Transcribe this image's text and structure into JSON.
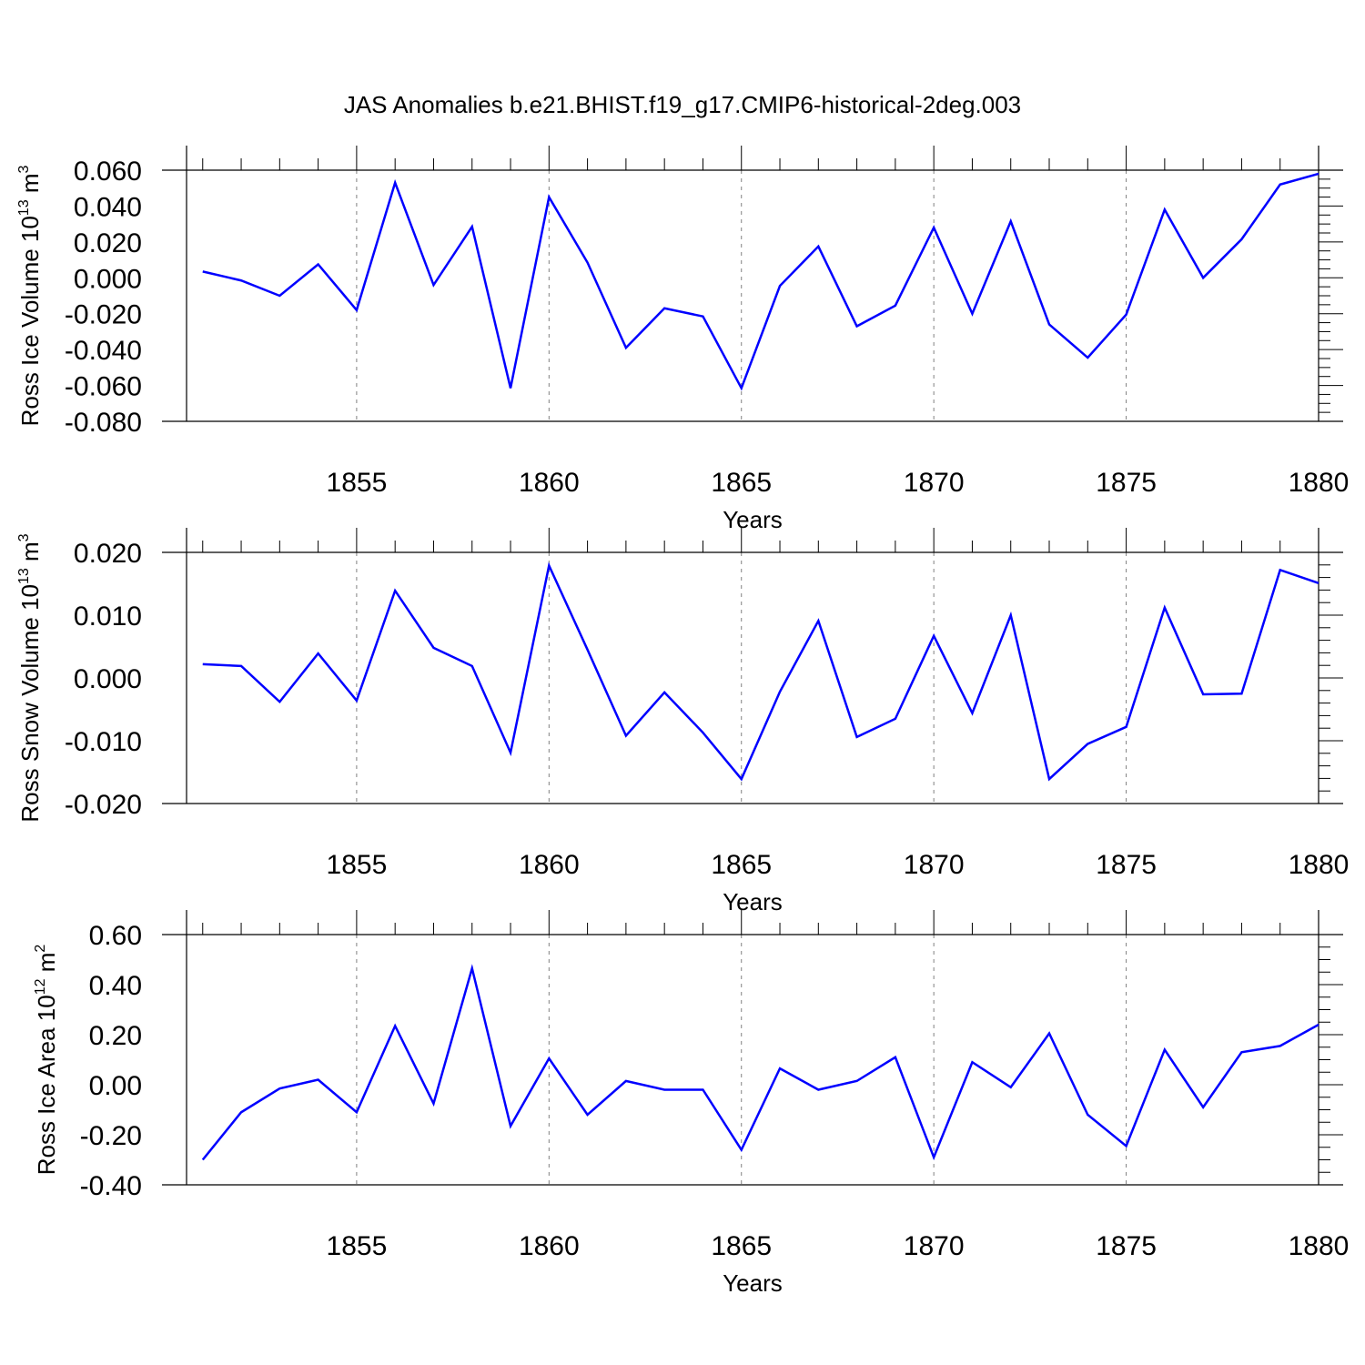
{
  "title": "JAS Anomalies b.e21.BHIST.f19_g17.CMIP6-historical-2deg.003",
  "colors": {
    "line": "#0000ff",
    "axis": "#000000",
    "grid": "#808080"
  },
  "chart_data": [
    {
      "type": "line",
      "ylabel": "Ross Ice Volume 10",
      "ylabel_exp": "13",
      "ylabel_unit": " m",
      "ylabel_unit_exp": "3",
      "xlabel": "Years",
      "xlim": [
        1850.58,
        1880
      ],
      "ylim": [
        -0.08,
        0.06
      ],
      "yticks": [
        -0.08,
        -0.06,
        -0.04,
        -0.02,
        0.0,
        0.02,
        0.04,
        0.06
      ],
      "ytick_labels": [
        "-0.080",
        "-0.060",
        "-0.040",
        "-0.020",
        "0.000",
        "0.020",
        "0.040",
        "0.060"
      ],
      "ymajor": 0.02,
      "yminor": 0.005,
      "xticks": [
        1855,
        1860,
        1865,
        1870,
        1875,
        1880
      ],
      "xtick_labels": [
        "1855",
        "1860",
        "1865",
        "1870",
        "1875",
        "1880"
      ],
      "x": [
        1851,
        1852,
        1853,
        1854,
        1855,
        1856,
        1857,
        1858,
        1859,
        1860,
        1861,
        1862,
        1863,
        1864,
        1865,
        1866,
        1867,
        1868,
        1869,
        1870,
        1871,
        1872,
        1873,
        1874,
        1875,
        1876,
        1877,
        1878,
        1879,
        1880
      ],
      "y": [
        0.0035,
        -0.0015,
        -0.01,
        0.0075,
        -0.018,
        0.053,
        -0.004,
        0.0285,
        -0.0615,
        0.045,
        0.0085,
        -0.039,
        -0.017,
        -0.0215,
        -0.0615,
        -0.0045,
        0.0175,
        -0.027,
        -0.0155,
        0.028,
        -0.02,
        0.0315,
        -0.026,
        -0.0445,
        -0.0205,
        0.038,
        0.0,
        0.0215,
        0.052,
        0.058
      ]
    },
    {
      "type": "line",
      "ylabel": "Ross Snow Volume 10",
      "ylabel_exp": "13",
      "ylabel_unit": " m",
      "ylabel_unit_exp": "3",
      "xlabel": "Years",
      "xlim": [
        1850.58,
        1880
      ],
      "ylim": [
        -0.02,
        0.02
      ],
      "yticks": [
        -0.02,
        -0.01,
        0.0,
        0.01,
        0.02
      ],
      "ytick_labels": [
        "-0.020",
        "-0.010",
        "0.000",
        "0.010",
        "0.020"
      ],
      "ymajor": 0.01,
      "yminor": 0.002,
      "xticks": [
        1855,
        1860,
        1865,
        1870,
        1875,
        1880
      ],
      "xtick_labels": [
        "1855",
        "1860",
        "1865",
        "1870",
        "1875",
        "1880"
      ],
      "x": [
        1851,
        1852,
        1853,
        1854,
        1855,
        1856,
        1857,
        1858,
        1859,
        1860,
        1861,
        1862,
        1863,
        1864,
        1865,
        1866,
        1867,
        1868,
        1869,
        1870,
        1871,
        1872,
        1873,
        1874,
        1875,
        1876,
        1877,
        1878,
        1879,
        1880
      ],
      "y": [
        0.0022,
        0.0019,
        -0.0038,
        0.0039,
        -0.0036,
        0.0139,
        0.0048,
        0.0019,
        -0.0119,
        0.0179,
        0.0045,
        -0.0092,
        -0.0023,
        -0.0087,
        -0.0161,
        -0.0022,
        0.0091,
        -0.0094,
        -0.0065,
        0.0067,
        -0.0056,
        0.01,
        -0.0161,
        -0.0105,
        -0.0078,
        0.0112,
        -0.0026,
        -0.0025,
        0.0172,
        0.0151
      ]
    },
    {
      "type": "line",
      "ylabel": "Ross Ice Area 10",
      "ylabel_exp": "12",
      "ylabel_unit": " m",
      "ylabel_unit_exp": "2",
      "xlabel": "Years",
      "xlim": [
        1850.58,
        1880
      ],
      "ylim": [
        -0.4,
        0.6
      ],
      "yticks": [
        -0.4,
        -0.2,
        0.0,
        0.2,
        0.4,
        0.6
      ],
      "ytick_labels": [
        "-0.40",
        "-0.20",
        "0.00",
        "0.20",
        "0.40",
        "0.60"
      ],
      "ymajor": 0.2,
      "yminor": 0.05,
      "xticks": [
        1855,
        1860,
        1865,
        1870,
        1875,
        1880
      ],
      "xtick_labels": [
        "1855",
        "1860",
        "1865",
        "1870",
        "1875",
        "1880"
      ],
      "x": [
        1851,
        1852,
        1853,
        1854,
        1855,
        1856,
        1857,
        1858,
        1859,
        1860,
        1861,
        1862,
        1863,
        1864,
        1865,
        1866,
        1867,
        1868,
        1869,
        1870,
        1871,
        1872,
        1873,
        1874,
        1875,
        1876,
        1877,
        1878,
        1879,
        1880
      ],
      "y": [
        -0.3,
        -0.11,
        -0.015,
        0.02,
        -0.11,
        0.235,
        -0.075,
        0.465,
        -0.165,
        0.105,
        -0.12,
        0.015,
        -0.02,
        -0.02,
        -0.26,
        0.065,
        -0.02,
        0.015,
        0.11,
        -0.29,
        0.09,
        -0.01,
        0.205,
        -0.12,
        -0.245,
        0.14,
        -0.09,
        0.13,
        0.155,
        0.24
      ]
    }
  ]
}
